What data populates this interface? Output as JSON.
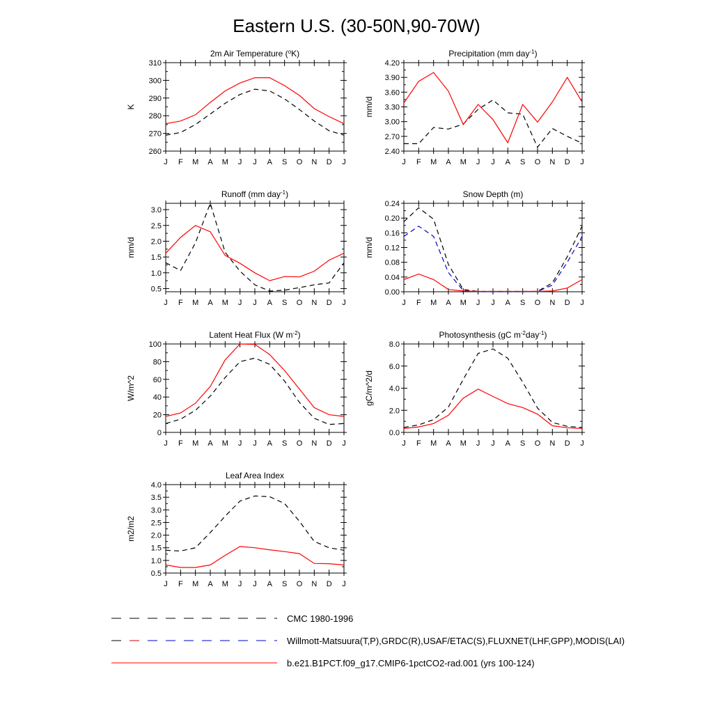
{
  "figure": {
    "title": "Eastern U.S. (30-50N,90-70W)"
  },
  "months": [
    "J",
    "F",
    "M",
    "A",
    "M",
    "J",
    "J",
    "A",
    "S",
    "O",
    "N",
    "D",
    "J"
  ],
  "styles": {
    "model": {
      "color": "#ff0000",
      "dash": ""
    },
    "obs": {
      "color": "#000000",
      "dash": "7,5"
    },
    "obs2": {
      "color": "#0000cc",
      "dash": "7,5"
    }
  },
  "legend": [
    {
      "style": "obs",
      "colors": [
        "#000000",
        "#000000"
      ],
      "label": "CMC 1980-1996"
    },
    {
      "style": "obs",
      "colors": [
        "#000000",
        "#cc0000",
        "#0000cc"
      ],
      "label": "Willmott-Matsuura(T,P),GRDC(R),USAF/ETAC(S),FLUXNET(LHF,GPP),MODIS(LAI)"
    },
    {
      "style": "model",
      "colors": [
        "#ff0000"
      ],
      "label": "b.e21.B1PCT.f09_g17.CMIP6-1pctCO2-rad.001 (yrs 100-124)"
    }
  ],
  "chart_data": [
    {
      "type": "line",
      "title": {
        "text": "2m Air Temperature (",
        "sup": "o",
        "after": "K)"
      },
      "ylabel": "K",
      "ylim": [
        260,
        310
      ],
      "yticks": [
        260,
        270,
        280,
        290,
        300,
        310
      ],
      "ytick_labels": [
        "260",
        "270",
        "280",
        "290",
        "300",
        "310"
      ],
      "series": [
        {
          "style": "obs",
          "values": [
            269,
            270.5,
            275,
            281,
            287,
            292,
            295,
            294,
            289.5,
            283.5,
            277,
            271.5,
            269
          ]
        },
        {
          "style": "model",
          "values": [
            275.5,
            277,
            280.5,
            287.5,
            294,
            298.5,
            301.5,
            301.5,
            297,
            291.5,
            284,
            279.5,
            275.5
          ]
        }
      ]
    },
    {
      "type": "line",
      "title": {
        "text": "Precipitation (mm day",
        "sup": "-1",
        "after": ")"
      },
      "ylabel": "mm/d",
      "ylim": [
        2.4,
        4.2
      ],
      "yticks": [
        2.4,
        2.7,
        3.0,
        3.3,
        3.6,
        3.9,
        4.2
      ],
      "ytick_labels": [
        "2.40",
        "2.70",
        "3.00",
        "3.30",
        "3.60",
        "3.90",
        "4.20"
      ],
      "series": [
        {
          "style": "obs",
          "values": [
            2.55,
            2.55,
            2.88,
            2.85,
            2.95,
            3.25,
            3.44,
            3.18,
            3.15,
            2.48,
            2.86,
            2.7,
            2.56
          ]
        },
        {
          "style": "model",
          "values": [
            3.38,
            3.82,
            4.0,
            3.62,
            2.94,
            3.35,
            3.04,
            2.57,
            3.35,
            2.99,
            3.4,
            3.9,
            3.4
          ]
        }
      ]
    },
    {
      "type": "line",
      "title": {
        "text": "Runoff (mm day",
        "sup": "-1",
        "after": ")"
      },
      "ylabel": "mm/d",
      "ylim": [
        0.4,
        3.2
      ],
      "yticks": [
        0.5,
        1.0,
        1.5,
        2.0,
        2.5,
        3.0
      ],
      "ytick_labels": [
        "0.5",
        "1.0",
        "1.5",
        "2.0",
        "2.5",
        "3.0"
      ],
      "series": [
        {
          "style": "obs",
          "values": [
            1.32,
            1.07,
            1.95,
            3.2,
            1.65,
            1.05,
            0.62,
            0.42,
            0.45,
            0.53,
            0.62,
            0.68,
            1.32
          ]
        },
        {
          "style": "model",
          "values": [
            1.62,
            2.12,
            2.5,
            2.3,
            1.55,
            1.3,
            1.0,
            0.75,
            0.88,
            0.87,
            1.05,
            1.4,
            1.62
          ]
        }
      ]
    },
    {
      "type": "line",
      "title": {
        "text": "Snow Depth (m)",
        "sup": "",
        "after": ""
      },
      "ylabel": "mm/d",
      "ylim": [
        0,
        0.24
      ],
      "yticks": [
        0,
        0.04,
        0.08,
        0.12,
        0.16,
        0.2,
        0.24
      ],
      "ytick_labels": [
        "0.00",
        "0.04",
        "0.08",
        "0.12",
        "0.16",
        "0.20",
        "0.24"
      ],
      "series": [
        {
          "style": "obs",
          "values": [
            0.19,
            0.228,
            0.197,
            0.074,
            0.006,
            0.001,
            0.001,
            0.001,
            0.001,
            0.001,
            0.024,
            0.095,
            0.178
          ]
        },
        {
          "style": "obs2",
          "values": [
            0.15,
            0.178,
            0.15,
            0.052,
            0.003,
            0.0,
            0.0,
            0.0,
            0.0,
            0.001,
            0.018,
            0.08,
            0.15
          ]
        },
        {
          "style": "model",
          "values": [
            0.033,
            0.048,
            0.033,
            0.006,
            0.002,
            0.001,
            0.001,
            0.001,
            0.001,
            0.001,
            0.002,
            0.01,
            0.033
          ]
        }
      ]
    },
    {
      "type": "line",
      "title": {
        "text": "Latent Heat Flux (W m",
        "sup": "-2",
        "after": ")"
      },
      "ylabel": "W/m^2",
      "ylim": [
        0,
        100
      ],
      "yticks": [
        0,
        20,
        40,
        60,
        80,
        100
      ],
      "ytick_labels": [
        "0",
        "20",
        "40",
        "60",
        "80",
        "100"
      ],
      "series": [
        {
          "style": "obs",
          "values": [
            10,
            15,
            25,
            41,
            62,
            80,
            84,
            77,
            58,
            34,
            16,
            9,
            10
          ]
        },
        {
          "style": "model",
          "values": [
            18,
            22,
            33,
            52,
            82,
            100,
            99.5,
            88,
            70,
            49,
            28,
            20,
            18
          ]
        }
      ]
    },
    {
      "type": "line",
      "title": {
        "text": "Photosynthesis (gC m",
        "sup": "-2",
        "after": "day",
        "sup2": "-1",
        "after2": ")"
      },
      "ylabel": "gC/m^2/d",
      "ylim": [
        0,
        8
      ],
      "yticks": [
        0,
        2,
        4,
        6,
        8
      ],
      "ytick_labels": [
        "0.0",
        "2.0",
        "4.0",
        "6.0",
        "8.0"
      ],
      "series": [
        {
          "style": "obs",
          "values": [
            0.45,
            0.68,
            1.15,
            2.3,
            4.8,
            7.15,
            7.55,
            6.7,
            4.55,
            2.2,
            0.9,
            0.55,
            0.45
          ]
        },
        {
          "style": "model",
          "values": [
            0.35,
            0.5,
            0.8,
            1.55,
            3.1,
            3.92,
            3.25,
            2.6,
            2.25,
            1.65,
            0.6,
            0.42,
            0.35
          ]
        }
      ]
    },
    {
      "type": "line",
      "title": {
        "text": "Leaf Area Index",
        "sup": "",
        "after": ""
      },
      "ylabel": "m2/m2",
      "ylim": [
        0.5,
        4.0
      ],
      "yticks": [
        0.5,
        1.0,
        1.5,
        2.0,
        2.5,
        3.0,
        3.5,
        4.0
      ],
      "ytick_labels": [
        "0.5",
        "1.0",
        "1.5",
        "2.0",
        "2.5",
        "3.0",
        "3.5",
        "4.0"
      ],
      "series": [
        {
          "style": "obs",
          "values": [
            1.4,
            1.37,
            1.5,
            2.1,
            2.75,
            3.35,
            3.55,
            3.52,
            3.25,
            2.55,
            1.75,
            1.5,
            1.4
          ]
        },
        {
          "style": "model",
          "values": [
            0.82,
            0.72,
            0.72,
            0.82,
            1.2,
            1.55,
            1.5,
            1.42,
            1.35,
            1.27,
            0.88,
            0.87,
            0.82
          ]
        }
      ]
    }
  ]
}
